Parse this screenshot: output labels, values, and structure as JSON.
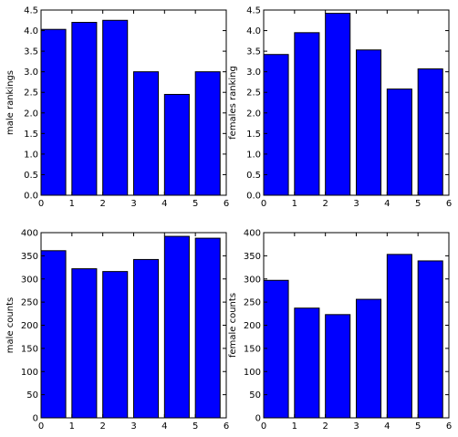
{
  "colors": {
    "bar": "#0000ff",
    "edge": "#000000",
    "background": "#ffffff"
  },
  "chart_data": [
    {
      "type": "bar",
      "categories": [
        0,
        1,
        2,
        3,
        4,
        5
      ],
      "values": [
        4.03,
        4.2,
        4.25,
        3.0,
        2.45,
        3.0
      ],
      "xlabel": "",
      "ylabel": "male rankings",
      "xlim": [
        0,
        6
      ],
      "ylim": [
        0,
        4.5
      ],
      "xticks": [
        "0",
        "1",
        "2",
        "3",
        "4",
        "5",
        "6"
      ],
      "yticks": [
        "0.0",
        "0.5",
        "1.0",
        "1.5",
        "2.0",
        "2.5",
        "3.0",
        "3.5",
        "4.0",
        "4.5"
      ],
      "grid": false
    },
    {
      "type": "bar",
      "categories": [
        0,
        1,
        2,
        3,
        4,
        5
      ],
      "values": [
        3.42,
        3.95,
        4.42,
        3.53,
        2.58,
        3.07
      ],
      "xlabel": "",
      "ylabel": "females ranking",
      "xlim": [
        0,
        6
      ],
      "ylim": [
        0,
        4.5
      ],
      "xticks": [
        "0",
        "1",
        "2",
        "3",
        "4",
        "5",
        "6"
      ],
      "yticks": [
        "0.0",
        "0.5",
        "1.0",
        "1.5",
        "2.0",
        "2.5",
        "3.0",
        "3.5",
        "4.0",
        "4.5"
      ],
      "grid": false
    },
    {
      "type": "bar",
      "categories": [
        0,
        1,
        2,
        3,
        4,
        5
      ],
      "values": [
        361,
        322,
        316,
        342,
        392,
        388
      ],
      "xlabel": "",
      "ylabel": "male counts",
      "xlim": [
        0,
        6
      ],
      "ylim": [
        0,
        400
      ],
      "xticks": [
        "0",
        "1",
        "2",
        "3",
        "4",
        "5",
        "6"
      ],
      "yticks": [
        "0",
        "50",
        "100",
        "150",
        "200",
        "250",
        "300",
        "350",
        "400"
      ],
      "grid": false
    },
    {
      "type": "bar",
      "categories": [
        0,
        1,
        2,
        3,
        4,
        5
      ],
      "values": [
        297,
        237,
        223,
        256,
        353,
        339
      ],
      "xlabel": "",
      "ylabel": "female counts",
      "xlim": [
        0,
        6
      ],
      "ylim": [
        0,
        400
      ],
      "xticks": [
        "0",
        "1",
        "2",
        "3",
        "4",
        "5",
        "6"
      ],
      "yticks": [
        "0",
        "50",
        "100",
        "150",
        "200",
        "250",
        "300",
        "350",
        "400"
      ],
      "grid": false
    }
  ]
}
